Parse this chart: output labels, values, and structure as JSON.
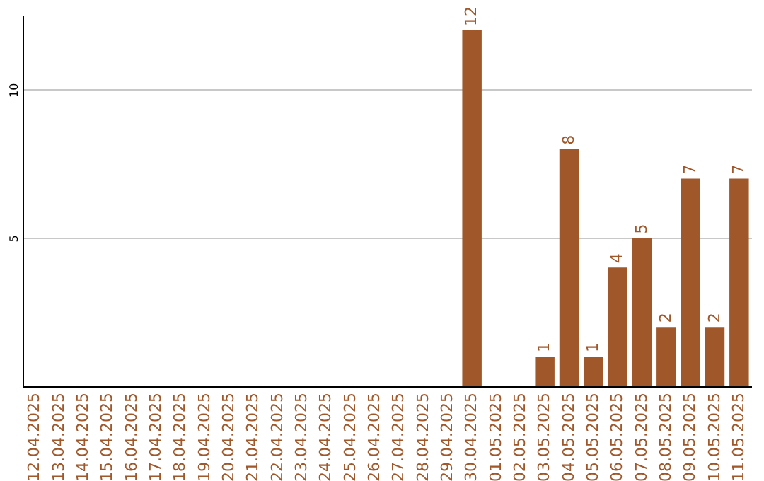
{
  "chart_data": {
    "type": "bar",
    "categories": [
      "12.04.2025",
      "13.04.2025",
      "14.04.2025",
      "15.04.2025",
      "16.04.2025",
      "17.04.2025",
      "18.04.2025",
      "19.04.2025",
      "20.04.2025",
      "21.04.2025",
      "22.04.2025",
      "23.04.2025",
      "24.04.2025",
      "25.04.2025",
      "26.04.2025",
      "27.04.2025",
      "28.04.2025",
      "29.04.2025",
      "30.04.2025",
      "01.05.2025",
      "02.05.2025",
      "03.05.2025",
      "04.05.2025",
      "05.05.2025",
      "06.05.2025",
      "07.05.2025",
      "08.05.2025",
      "09.05.2025",
      "10.05.2025",
      "11.05.2025"
    ],
    "values": [
      0,
      0,
      0,
      0,
      0,
      0,
      0,
      0,
      0,
      0,
      0,
      0,
      0,
      0,
      0,
      0,
      0,
      0,
      12,
      0,
      0,
      1,
      8,
      1,
      4,
      5,
      2,
      7,
      2,
      7
    ],
    "value_labels": [
      null,
      null,
      null,
      null,
      null,
      null,
      null,
      null,
      null,
      null,
      null,
      null,
      null,
      null,
      null,
      null,
      null,
      null,
      "12",
      null,
      null,
      "1",
      "8",
      "1",
      "4",
      "5",
      "2",
      "7",
      "2",
      "7"
    ],
    "color": "#a0572a",
    "ylim": [
      0,
      12.5
    ],
    "yticks": [
      5,
      10
    ],
    "grid": "y"
  }
}
